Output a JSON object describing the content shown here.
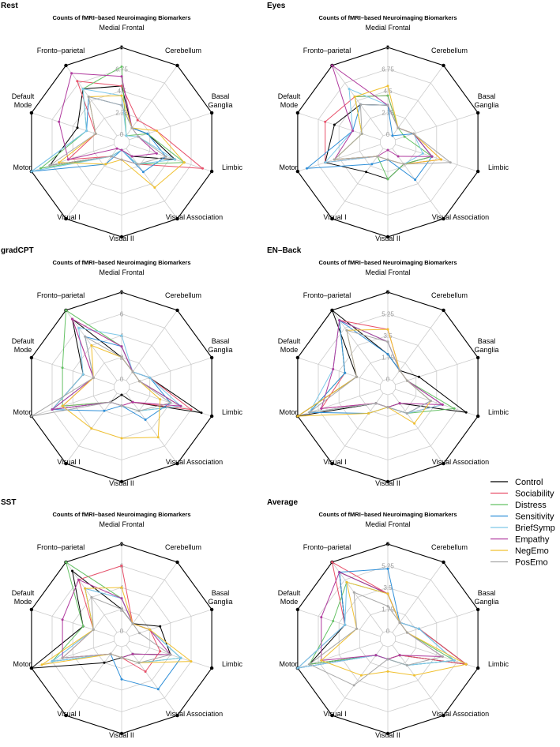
{
  "chart_data": {
    "type": "radar",
    "title": "Counts of fMRI–based Neuroimaging Biomarkers",
    "axes": [
      "Medial Frontal",
      "Cerebellum",
      "Basal Ganglia",
      "Limbic",
      "Visual Association",
      "Visual II",
      "Visual I",
      "Motor",
      "Default Mode",
      "Fronto–parietal"
    ],
    "legend": {
      "position": "right",
      "entries": [
        {
          "name": "Control",
          "color": "#000000"
        },
        {
          "name": "Sociability",
          "color": "#e8506a"
        },
        {
          "name": "Distress",
          "color": "#66c266"
        },
        {
          "name": "Sensitivity",
          "color": "#2f8fd8"
        },
        {
          "name": "BriefSymp",
          "color": "#7ec8e8"
        },
        {
          "name": "Empathy",
          "color": "#b03a9e"
        },
        {
          "name": "NegEmo",
          "color": "#f0c030"
        },
        {
          "name": "PosEmo",
          "color": "#a8a8a8"
        }
      ]
    },
    "panels": [
      {
        "label": "Rest",
        "max": 9,
        "ticks": [
          "0",
          "2.25",
          "4.5",
          "6.75",
          "9"
        ],
        "series": [
          {
            "name": "Control",
            "values": [
              5,
              1,
              2,
              5,
              1,
              0,
              1,
              7,
              4,
              6
            ]
          },
          {
            "name": "Sociability",
            "values": [
              5,
              2,
              3,
              8,
              2,
              1,
              1,
              5,
              2,
              7
            ]
          },
          {
            "name": "Distress",
            "values": [
              7,
              0,
              2,
              6,
              2,
              0,
              1,
              8,
              3,
              6
            ]
          },
          {
            "name": "Sensitivity",
            "values": [
              3,
              1,
              2,
              4,
              3,
              0,
              2,
              9,
              3,
              5
            ]
          },
          {
            "name": "BriefSymp",
            "values": [
              4,
              0,
              1,
              5,
              2,
              0,
              1,
              9,
              3,
              6
            ]
          },
          {
            "name": "Empathy",
            "values": [
              6,
              1,
              1,
              3,
              1,
              0,
              0,
              5,
              6,
              8
            ]
          },
          {
            "name": "NegEmo",
            "values": [
              4,
              1,
              3,
              6,
              5,
              1,
              2,
              6,
              2,
              5
            ]
          },
          {
            "name": "PosEmo",
            "values": [
              3,
              1,
              1,
              4,
              2,
              1,
              1,
              7,
              2,
              5
            ]
          }
        ]
      },
      {
        "label": "Eyes",
        "max": 9,
        "ticks": [
          "0",
          "2.25",
          "4.5",
          "6.75",
          "9"
        ],
        "series": [
          {
            "name": "Control",
            "values": [
              3,
              1,
              2,
              4,
              2,
              3,
              3,
              6,
              5,
              4
            ]
          },
          {
            "name": "Sociability",
            "values": [
              4,
              1,
              2,
              5,
              2,
              1,
              1,
              6,
              6,
              5
            ]
          },
          {
            "name": "Distress",
            "values": [
              4,
              1,
              1,
              4,
              2,
              3,
              1,
              5,
              2,
              5
            ]
          },
          {
            "name": "Sensitivity",
            "values": [
              3,
              0,
              2,
              4,
              4,
              1,
              2,
              8,
              3,
              4
            ]
          },
          {
            "name": "BriefSymp",
            "values": [
              3,
              1,
              2,
              3,
              2,
              1,
              1,
              6,
              3,
              6
            ]
          },
          {
            "name": "Empathy",
            "values": [
              3,
              1,
              2,
              4,
              1,
              0,
              1,
              5,
              3,
              9
            ]
          },
          {
            "name": "NegEmo",
            "values": [
              5,
              1,
              2,
              5,
              2,
              1,
              1,
              5,
              2,
              5
            ]
          },
          {
            "name": "PosEmo",
            "values": [
              3,
              1,
              2,
              6,
              2,
              1,
              1,
              5,
              2,
              4
            ]
          }
        ]
      },
      {
        "label": "gradCPT",
        "max": 8,
        "ticks": [
          "0",
          "2",
          "4",
          "6",
          "8"
        ],
        "series": [
          {
            "name": "Control",
            "values": [
              2,
              1,
              2,
              7,
              1,
              0,
              1,
              6,
              3,
              7
            ]
          },
          {
            "name": "Sociability",
            "values": [
              3,
              1,
              2,
              6,
              1,
              1,
              1,
              5,
              2,
              7
            ]
          },
          {
            "name": "Distress",
            "values": [
              3,
              1,
              1,
              5,
              2,
              1,
              1,
              5,
              5,
              8
            ]
          },
          {
            "name": "Sensitivity",
            "values": [
              3,
              1,
              2,
              4,
              3,
              1,
              2,
              6,
              2,
              5
            ]
          },
          {
            "name": "BriefSymp",
            "values": [
              4,
              1,
              2,
              5,
              2,
              1,
              1,
              6,
              3,
              6
            ]
          },
          {
            "name": "Empathy",
            "values": [
              3,
              1,
              1,
              5,
              1,
              1,
              1,
              6,
              2,
              7
            ]
          },
          {
            "name": "NegEmo",
            "values": [
              2,
              1,
              1,
              3,
              5,
              4,
              4,
              5,
              2,
              4
            ]
          },
          {
            "name": "PosEmo",
            "values": [
              2,
              1,
              1,
              4,
              2,
              1,
              1,
              8,
              2,
              5
            ]
          }
        ]
      },
      {
        "label": "EN–Back",
        "max": 7,
        "ticks": [
          "0",
          "1.75",
          "3.5",
          "5.25",
          "7"
        ],
        "series": [
          {
            "name": "Control",
            "values": [
              2,
              1,
              2,
              6,
              1,
              1,
              1,
              7,
              2,
              7
            ]
          },
          {
            "name": "Sociability",
            "values": [
              4,
              1,
              1,
              4,
              2,
              1,
              1,
              5,
              3,
              6
            ]
          },
          {
            "name": "Distress",
            "values": [
              3,
              1,
              1,
              5,
              2,
              1,
              1,
              6,
              3,
              6
            ]
          },
          {
            "name": "Sensitivity",
            "values": [
              2,
              1,
              1,
              3,
              2,
              1,
              2,
              6,
              3,
              6
            ]
          },
          {
            "name": "BriefSymp",
            "values": [
              3,
              1,
              1,
              4,
              2,
              1,
              1,
              6,
              4,
              6
            ]
          },
          {
            "name": "Empathy",
            "values": [
              3,
              1,
              1,
              4,
              1,
              1,
              1,
              5,
              4,
              6
            ]
          },
          {
            "name": "NegEmo",
            "values": [
              4,
              1,
              1,
              3,
              3,
              1,
              2,
              7,
              2,
              5
            ]
          },
          {
            "name": "PosEmo",
            "values": [
              3,
              1,
              1,
              3,
              2,
              1,
              1,
              6,
              2,
              5
            ]
          }
        ]
      },
      {
        "label": "SST",
        "max": 8,
        "ticks": [
          "0",
          "2",
          "4",
          "6",
          "8"
        ],
        "series": [
          {
            "name": "Control",
            "values": [
              2,
              1,
              3,
              4,
              1,
              1,
              2,
              8,
              3,
              7
            ]
          },
          {
            "name": "Sociability",
            "values": [
              6,
              1,
              2,
              3,
              3,
              1,
              1,
              5,
              2,
              6
            ]
          },
          {
            "name": "Distress",
            "values": [
              3,
              1,
              2,
              5,
              2,
              1,
              1,
              6,
              3,
              8
            ]
          },
          {
            "name": "Sensitivity",
            "values": [
              3,
              1,
              2,
              5,
              5,
              3,
              1,
              6,
              2,
              5
            ]
          },
          {
            "name": "BriefSymp",
            "values": [
              3,
              1,
              2,
              5,
              2,
              1,
              1,
              6,
              2,
              5
            ]
          },
          {
            "name": "Empathy",
            "values": [
              3,
              1,
              2,
              4,
              1,
              1,
              1,
              5,
              5,
              6
            ]
          },
          {
            "name": "NegEmo",
            "values": [
              4,
              1,
              2,
              6,
              2,
              1,
              1,
              7,
              2,
              5
            ]
          },
          {
            "name": "PosEmo",
            "values": [
              2,
              1,
              1,
              4,
              2,
              1,
              1,
              5,
              2,
              4
            ]
          }
        ]
      },
      {
        "label": "Average",
        "max": 7,
        "ticks": [
          "0",
          "1.75",
          "3.5",
          "5.25",
          "7"
        ],
        "series": [
          {
            "name": "Control",
            "values": [
              3,
              1,
              2,
              6,
              1,
              1,
              1,
              6,
              3,
              6
            ]
          },
          {
            "name": "Sociability",
            "values": [
              3,
              1,
              2,
              6,
              1,
              1,
              1,
              7,
              3,
              7
            ]
          },
          {
            "name": "Distress",
            "values": [
              3,
              1,
              1,
              5,
              2,
              1,
              1,
              6,
              4,
              5
            ]
          },
          {
            "name": "Sensitivity",
            "values": [
              5,
              1,
              2,
              5,
              2,
              1,
              1,
              7,
              3,
              6
            ]
          },
          {
            "name": "BriefSymp",
            "values": [
              3,
              1,
              2,
              5,
              2,
              1,
              1,
              7,
              3,
              5
            ]
          },
          {
            "name": "Empathy",
            "values": [
              3,
              1,
              1,
              4,
              1,
              1,
              1,
              5,
              5,
              6
            ]
          },
          {
            "name": "NegEmo",
            "values": [
              3,
              1,
              1,
              6,
              3,
              2,
              3,
              5,
              2,
              5
            ]
          },
          {
            "name": "PosEmo",
            "values": [
              2,
              1,
              1,
              4,
              2,
              1,
              4,
              6,
              2,
              4
            ]
          }
        ]
      }
    ]
  }
}
